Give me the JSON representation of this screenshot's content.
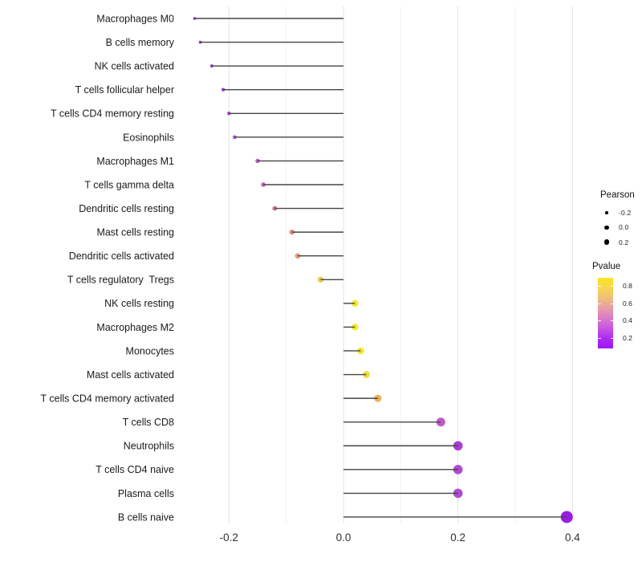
{
  "figure": {
    "background": "#FFFFFF"
  },
  "chart_data": {
    "type": "lollipop",
    "title": "",
    "xlabel": "",
    "ylabel": "",
    "orientation": "horizontal",
    "x_axis": {
      "ticks": [
        -0.2,
        0.0,
        0.2,
        0.4
      ],
      "tick_labels": [
        "-0.2",
        "0.0",
        "0.2",
        "0.4"
      ],
      "minor_ticks": [
        -0.1,
        0.1,
        0.3
      ],
      "range": [
        -0.29,
        0.425
      ],
      "grid": "vertical-only"
    },
    "series": [
      {
        "label": "Macrophages M0",
        "pearson": -0.26,
        "pvalue": 0.09,
        "color": "#9128DC"
      },
      {
        "label": "B cells memory",
        "pearson": -0.25,
        "pvalue": 0.1,
        "color": "#9229DA"
      },
      {
        "label": "NK cells activated",
        "pearson": -0.23,
        "pvalue": 0.14,
        "color": "#A036D6"
      },
      {
        "label": "T cells follicular helper",
        "pearson": -0.21,
        "pvalue": 0.15,
        "color": "#A53CD3"
      },
      {
        "label": "T cells CD4 memory resting",
        "pearson": -0.2,
        "pvalue": 0.17,
        "color": "#A93FD2"
      },
      {
        "label": "Eosinophils",
        "pearson": -0.19,
        "pvalue": 0.19,
        "color": "#B24BCB"
      },
      {
        "label": "Macrophages M1",
        "pearson": -0.15,
        "pvalue": 0.24,
        "color": "#BD59BE"
      },
      {
        "label": "T cells gamma delta",
        "pearson": -0.14,
        "pvalue": 0.28,
        "color": "#C363B1"
      },
      {
        "label": "Dendritic cells resting",
        "pearson": -0.12,
        "pvalue": 0.37,
        "color": "#C9739F"
      },
      {
        "label": "Mast cells resting",
        "pearson": -0.09,
        "pvalue": 0.52,
        "color": "#E18F82"
      },
      {
        "label": "Dendritic cells activated",
        "pearson": -0.08,
        "pvalue": 0.56,
        "color": "#E59A77"
      },
      {
        "label": "T cells regulatory  Tregs",
        "pearson": -0.04,
        "pvalue": 0.73,
        "color": "#EDCB50"
      },
      {
        "label": "NK cells resting",
        "pearson": 0.02,
        "pvalue": 0.86,
        "color": "#F3E92A"
      },
      {
        "label": "Macrophages M2",
        "pearson": 0.02,
        "pvalue": 0.86,
        "color": "#F3E92A"
      },
      {
        "label": "Monocytes",
        "pearson": 0.03,
        "pvalue": 0.85,
        "color": "#F3E72C"
      },
      {
        "label": "Mast cells activated",
        "pearson": 0.04,
        "pvalue": 0.8,
        "color": "#F1DC3A"
      },
      {
        "label": "T cells CD4 memory activated",
        "pearson": 0.06,
        "pvalue": 0.65,
        "color": "#E9B158"
      },
      {
        "label": "T cells CD8",
        "pearson": 0.17,
        "pvalue": 0.26,
        "color": "#C05CC6"
      },
      {
        "label": "Neutrophils",
        "pearson": 0.2,
        "pvalue": 0.15,
        "color": "#AC3AD4"
      },
      {
        "label": "T cells CD4 naive",
        "pearson": 0.2,
        "pvalue": 0.17,
        "color": "#B04AD0"
      },
      {
        "label": "Plasma cells",
        "pearson": 0.2,
        "pvalue": 0.18,
        "color": "#B149CE"
      },
      {
        "label": "B cells naive",
        "pearson": 0.39,
        "pvalue": 0.07,
        "color": "#9D1CE4"
      }
    ],
    "legend": {
      "size": {
        "title": "Pearson",
        "entries": [
          {
            "label": "-0.2",
            "value": -0.2
          },
          {
            "label": "0.0",
            "value": 0.0
          },
          {
            "label": "0.2",
            "value": 0.2
          }
        ]
      },
      "color": {
        "title": "Pvalue",
        "tick_labels": [
          "0.8",
          "0.6",
          "0.4",
          "0.2"
        ],
        "gradient_top_to_bottom": [
          "#F9E721",
          "#F6D74F",
          "#F2BE7B",
          "#E99DA6",
          "#DA7BC8",
          "#C657E0",
          "#AC2BF2",
          "#9F16FA"
        ],
        "range": [
          0.08,
          0.9
        ]
      }
    },
    "style": {
      "stem_color": "#454545",
      "grid_major_color": "#E3E3E3",
      "grid_minor_color": "#F2F2F2",
      "axis_text_color": "#1A1A1A",
      "tick_text_color": "#303030"
    }
  }
}
